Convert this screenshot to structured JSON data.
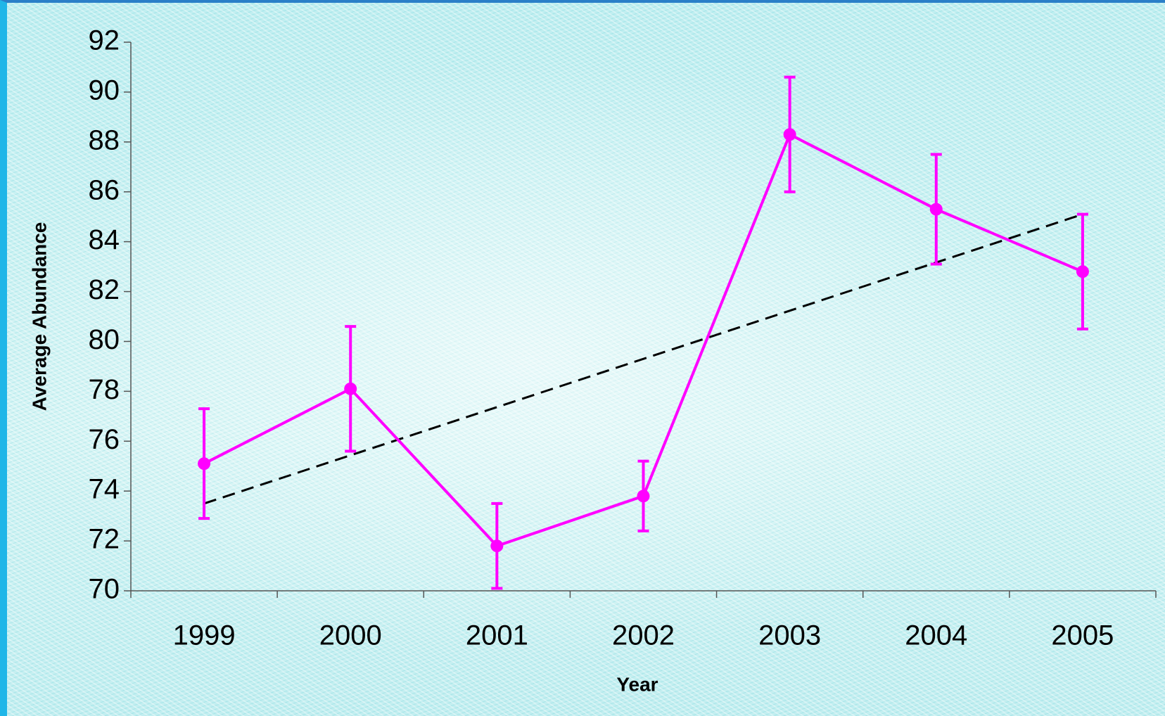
{
  "chart_data": {
    "type": "line",
    "x_label": "Year",
    "y_label": "Average Abundance",
    "categories": [
      "1999",
      "2000",
      "2001",
      "2002",
      "2003",
      "2004",
      "2005"
    ],
    "series": [
      {
        "color": "#ff00ff",
        "values": [
          75.1,
          78.1,
          71.8,
          73.8,
          88.3,
          85.3,
          82.8
        ],
        "errors": [
          2.2,
          2.5,
          1.7,
          1.4,
          2.3,
          2.2,
          2.3
        ]
      }
    ],
    "trendline": {
      "start": 73.5,
      "end": 85.1,
      "color": "#000000",
      "dashed": true
    },
    "ylim": [
      70,
      92
    ],
    "yticks": [
      70,
      72,
      74,
      76,
      78,
      80,
      82,
      84,
      86,
      88,
      90,
      92
    ]
  }
}
